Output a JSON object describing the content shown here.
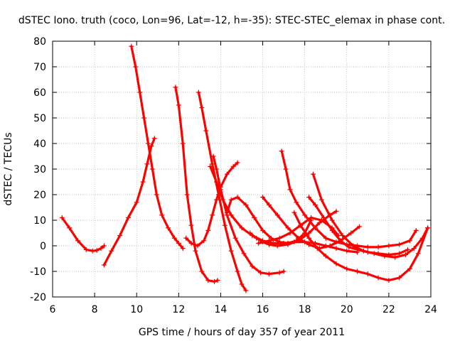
{
  "chart_data": {
    "type": "line",
    "title": "dSTEC Iono. truth (coco, Lon=96, Lat=-12, h=-35): STEC-STEC_elemax in phase cont.",
    "xlabel": "GPS time / hours of day 357 of year 2011",
    "ylabel": "dSTEC  / TECUs",
    "xlim": [
      6,
      24
    ],
    "ylim": [
      -20,
      80
    ],
    "xticks": [
      6,
      8,
      10,
      12,
      14,
      16,
      18,
      20,
      22,
      24
    ],
    "yticks": [
      -20,
      -10,
      0,
      10,
      20,
      30,
      40,
      50,
      60,
      70,
      80
    ],
    "grid": true,
    "legend": "none",
    "color": "#ff0000",
    "series": [
      {
        "x": [
          6.45,
          6.8,
          7.2,
          7.6,
          7.9,
          8.1,
          8.3,
          8.45
        ],
        "y": [
          11,
          7,
          2,
          -1.5,
          -2,
          -1.8,
          -1,
          0
        ]
      },
      {
        "x": [
          8.45,
          8.8,
          9.2,
          9.6,
          10.0,
          10.3,
          10.5,
          10.7,
          10.85
        ],
        "y": [
          -7.5,
          -2,
          4,
          11,
          17,
          25,
          32,
          39,
          42
        ]
      },
      {
        "x": [
          9.75,
          9.95,
          10.15,
          10.35,
          10.55,
          10.75,
          10.95,
          11.2,
          11.5,
          11.8,
          12.0,
          12.2
        ],
        "y": [
          78,
          70,
          60,
          50,
          40,
          30,
          20,
          12,
          7,
          3,
          1,
          -1
        ]
      },
      {
        "x": [
          11.85,
          12.0,
          12.2,
          12.4,
          12.6,
          12.8,
          13.1,
          13.4,
          13.7,
          13.85
        ],
        "y": [
          62,
          55,
          40,
          20,
          8,
          -2,
          -10,
          -13.5,
          -14,
          -13.5
        ]
      },
      {
        "x": [
          12.95,
          13.1,
          13.3,
          13.6,
          13.9,
          14.2,
          14.5,
          14.8,
          15.0,
          15.2
        ],
        "y": [
          60,
          54,
          45,
          32,
          20,
          8,
          -2,
          -10,
          -15,
          -17.5
        ]
      },
      {
        "x": [
          12.35,
          12.6,
          12.9,
          13.2,
          13.4,
          13.6,
          13.8,
          14.0,
          14.3,
          14.6,
          14.8
        ],
        "y": [
          3,
          1,
          0,
          2,
          6,
          12,
          18,
          23,
          28,
          31,
          32.5
        ]
      },
      {
        "x": [
          13.65,
          13.8,
          14.0,
          14.3,
          14.7,
          15.1,
          15.5,
          15.9,
          16.3,
          16.8,
          17.0
        ],
        "y": [
          35,
          30,
          22,
          12,
          3,
          -3,
          -8,
          -10.5,
          -11,
          -10.5,
          -10
        ]
      },
      {
        "x": [
          13.5,
          13.8,
          14.1,
          14.5,
          15.0,
          15.5,
          16.0,
          16.5,
          17.0,
          17.5,
          18.0,
          18.5,
          19.0,
          19.5,
          20.0,
          20.5
        ],
        "y": [
          31,
          25,
          18,
          12,
          7,
          4,
          2,
          1,
          1,
          1.5,
          1.5,
          1,
          0,
          -1,
          -2,
          -2.5
        ]
      },
      {
        "x": [
          14.3,
          14.5,
          14.8,
          15.2,
          15.6,
          16.0,
          16.4,
          16.8,
          17.2,
          17.6,
          18.0,
          18.3
        ],
        "y": [
          13,
          18,
          19,
          16,
          11,
          6,
          3,
          1.5,
          1,
          2,
          5,
          10
        ]
      },
      {
        "x": [
          15.4,
          15.7,
          16.0,
          16.3,
          16.7,
          17.2,
          17.7,
          18.2,
          18.7,
          19.2,
          19.5
        ],
        "y": [
          5,
          3,
          1.5,
          0.5,
          0,
          0.5,
          2,
          5,
          9,
          12,
          13.5
        ]
      },
      {
        "x": [
          16.0,
          16.3,
          16.7,
          17.2,
          17.7,
          18.2,
          18.7,
          19.2,
          19.7,
          20.2,
          20.6
        ],
        "y": [
          19,
          16,
          12,
          7,
          3,
          0.5,
          -1,
          0,
          2,
          5,
          7.5
        ]
      },
      {
        "x": [
          15.8,
          16.3,
          16.8,
          17.3,
          17.8,
          18.3,
          18.8,
          19.3,
          19.6
        ],
        "y": [
          1,
          2,
          3,
          5,
          8,
          11,
          10,
          7,
          4
        ]
      },
      {
        "x": [
          16.9,
          17.1,
          17.3,
          17.6,
          18.0,
          18.5,
          19.0,
          19.5,
          20.0,
          20.5,
          21.0,
          21.5,
          22.0,
          22.5,
          23.0,
          23.3
        ],
        "y": [
          37,
          30,
          22,
          17,
          12,
          7,
          3,
          1.5,
          0.5,
          0,
          -0.5,
          -0.5,
          0,
          0.5,
          2,
          6
        ]
      },
      {
        "x": [
          18.2,
          18.5,
          18.9,
          19.3,
          19.7,
          20.1,
          20.5,
          21.0,
          21.5,
          22.0,
          22.5,
          22.9
        ],
        "y": [
          19,
          16,
          11,
          6,
          2,
          -0.5,
          -1.5,
          -2.5,
          -3,
          -3.5,
          -3,
          -1.5
        ]
      },
      {
        "x": [
          18.4,
          18.8,
          19.3,
          19.8,
          20.3,
          20.8,
          21.3,
          21.8,
          22.3,
          22.8,
          23.2,
          23.6,
          23.85
        ],
        "y": [
          28,
          18,
          10,
          4,
          0,
          -2,
          -3,
          -4,
          -4.5,
          -3.5,
          -1,
          3,
          7
        ]
      },
      {
        "x": [
          17.5,
          17.8,
          18.2,
          18.6,
          19.0,
          19.5,
          20.0,
          20.5,
          21.0,
          21.5,
          22.0,
          22.5,
          23.0,
          23.4,
          23.85
        ],
        "y": [
          13,
          8,
          3,
          -1,
          -4,
          -7,
          -9,
          -10,
          -11,
          -12.5,
          -13.5,
          -12.5,
          -9,
          -3,
          7
        ]
      }
    ]
  }
}
